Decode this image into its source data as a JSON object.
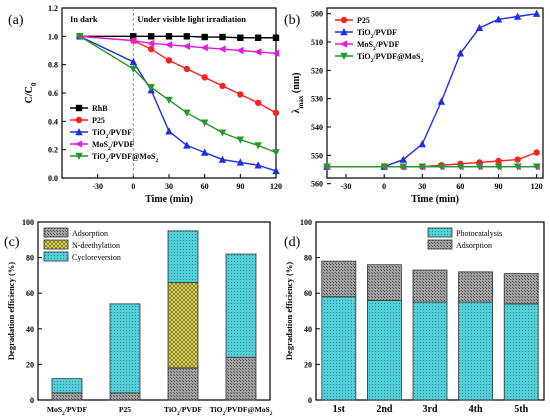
{
  "chart_data": [
    {
      "id": "a",
      "type": "line",
      "panel_label": "(a)",
      "xlabel": "Time (min)",
      "ylabel": "C/C",
      "ylabel_sub": "0",
      "xlim": [
        -60,
        120
      ],
      "ylim": [
        0,
        1.2
      ],
      "xticks": [
        -30,
        0,
        30,
        60,
        90,
        120
      ],
      "yticks": [
        0.0,
        0.2,
        0.4,
        0.6,
        0.8,
        1.0,
        1.2
      ],
      "annotations": [
        "In dark",
        "Under visible light irradiation"
      ],
      "divider_x": 0,
      "legend": "bottom-left",
      "series": [
        {
          "name": "RhB",
          "color": "#000000",
          "marker": "square",
          "x": [
            -45,
            0,
            15,
            30,
            45,
            60,
            75,
            90,
            105,
            120
          ],
          "y": [
            1.0,
            1.0,
            1.0,
            1.0,
            1.0,
            0.995,
            0.995,
            0.99,
            0.99,
            0.99
          ]
        },
        {
          "name": "P25",
          "color": "#ff2020",
          "marker": "circle",
          "x": [
            -45,
            0,
            15,
            30,
            45,
            60,
            75,
            90,
            105,
            120
          ],
          "y": [
            1.0,
            0.97,
            0.91,
            0.83,
            0.77,
            0.71,
            0.65,
            0.59,
            0.53,
            0.46
          ]
        },
        {
          "name": "TiO₂/PVDF",
          "color": "#1e2ee6",
          "marker": "triangle-up",
          "x": [
            -45,
            0,
            15,
            30,
            45,
            60,
            75,
            90,
            105,
            120
          ],
          "y": [
            1.0,
            0.82,
            0.62,
            0.33,
            0.23,
            0.18,
            0.13,
            0.11,
            0.09,
            0.05
          ]
        },
        {
          "name": "MoS₂/PVDF",
          "color": "#e619e6",
          "marker": "triangle-left",
          "x": [
            -45,
            0,
            15,
            30,
            45,
            60,
            75,
            90,
            105,
            120
          ],
          "y": [
            1.0,
            0.97,
            0.95,
            0.94,
            0.93,
            0.92,
            0.91,
            0.9,
            0.89,
            0.88
          ]
        },
        {
          "name": "TiO₂/PVDF@MoS₂",
          "color": "#229922",
          "marker": "triangle-down",
          "x": [
            -45,
            0,
            15,
            30,
            45,
            60,
            75,
            90,
            105,
            120
          ],
          "y": [
            1.0,
            0.77,
            0.64,
            0.55,
            0.46,
            0.39,
            0.32,
            0.27,
            0.23,
            0.18
          ]
        }
      ]
    },
    {
      "id": "b",
      "type": "line",
      "panel_label": "(b)",
      "xlabel": "Time (min)",
      "ylabel": "λmax (nm)",
      "xlim": [
        -45,
        125
      ],
      "ylim": [
        558,
        498
      ],
      "y_inverted": true,
      "xticks": [
        -30,
        0,
        30,
        60,
        90,
        120
      ],
      "yticks": [
        500,
        510,
        520,
        530,
        540,
        550,
        560
      ],
      "legend": "top-left",
      "series": [
        {
          "name": "P25",
          "color": "#ff2020",
          "marker": "circle",
          "x": [
            -45,
            0,
            15,
            30,
            45,
            60,
            75,
            90,
            105,
            120
          ],
          "y": [
            554,
            554,
            554,
            554,
            553.5,
            553,
            552.5,
            552,
            551.5,
            549
          ]
        },
        {
          "name": "TiO₂/PVDF",
          "color": "#1e2ee6",
          "marker": "triangle-up",
          "x": [
            -45,
            0,
            15,
            30,
            45,
            60,
            75,
            90,
            105,
            120
          ],
          "y": [
            554,
            554,
            551.5,
            546,
            531,
            514,
            505,
            502,
            501,
            500
          ]
        },
        {
          "name": "MoS₂/PVDF",
          "color": "#e619e6",
          "marker": "triangle-left",
          "x": [
            -45,
            0,
            15,
            30,
            45,
            60,
            75,
            90,
            105,
            120
          ],
          "y": [
            554,
            554,
            554,
            554,
            554,
            554,
            554,
            554,
            554,
            554
          ]
        },
        {
          "name": "TiO₂/PVDF@MoS₂",
          "color": "#229922",
          "marker": "triangle-down",
          "x": [
            -45,
            0,
            15,
            30,
            45,
            60,
            75,
            90,
            105,
            120
          ],
          "y": [
            554,
            554,
            554,
            554,
            554,
            554,
            554,
            554,
            554,
            554
          ]
        }
      ]
    },
    {
      "id": "c",
      "type": "bar",
      "stacked": true,
      "panel_label": "(c)",
      "ylabel": "Degradation efficiency (%)",
      "ylim": [
        0,
        100
      ],
      "yticks": [
        0,
        20,
        40,
        60,
        80,
        100
      ],
      "categories": [
        "MoS₂/PVDF",
        "P25",
        "TiO₂/PVDF",
        "TiO₂/PVDF@MoS₂"
      ],
      "legend": "top-left",
      "series": [
        {
          "name": "Adsorption",
          "fill": "#9a9a9a",
          "pattern": "grid",
          "values": [
            4,
            4,
            18,
            24
          ]
        },
        {
          "name": "N-deethylation",
          "fill": "#e8e060",
          "pattern": "cross",
          "values": [
            0,
            0,
            48,
            0
          ]
        },
        {
          "name": "Cycloreversion",
          "fill": "#55cfd8",
          "pattern": "dots",
          "values": [
            8,
            50,
            29,
            58
          ]
        }
      ]
    },
    {
      "id": "d",
      "type": "bar",
      "stacked": true,
      "panel_label": "(d)",
      "ylabel": "Degradation efficiency (%)",
      "ylim": [
        0,
        100
      ],
      "yticks": [
        0,
        20,
        40,
        60,
        80,
        100
      ],
      "categories": [
        "1st",
        "2nd",
        "3rd",
        "4th",
        "5th"
      ],
      "legend": "top-right",
      "series": [
        {
          "name": "Photocatalysis",
          "fill": "#55cfd8",
          "pattern": "dots",
          "values": [
            58,
            56,
            55,
            55,
            54
          ]
        },
        {
          "name": "Adsorption",
          "fill": "#9a9a9a",
          "pattern": "grid",
          "values": [
            20,
            20,
            18,
            17,
            17
          ]
        }
      ]
    }
  ]
}
